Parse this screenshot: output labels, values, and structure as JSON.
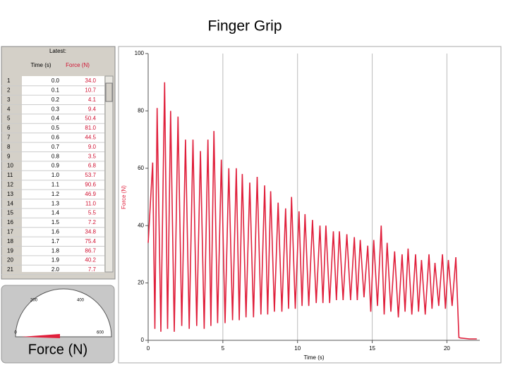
{
  "title": "Finger Grip",
  "table": {
    "group_header": "Latest:",
    "headers": [
      "Time (s)",
      "Force (N)"
    ],
    "rows": [
      [
        "1",
        "0.0",
        "34.0"
      ],
      [
        "2",
        "0.1",
        "10.7"
      ],
      [
        "3",
        "0.2",
        "4.1"
      ],
      [
        "4",
        "0.3",
        "9.4"
      ],
      [
        "5",
        "0.4",
        "50.4"
      ],
      [
        "6",
        "0.5",
        "81.0"
      ],
      [
        "7",
        "0.6",
        "44.5"
      ],
      [
        "8",
        "0.7",
        "9.0"
      ],
      [
        "9",
        "0.8",
        "3.5"
      ],
      [
        "10",
        "0.9",
        "6.8"
      ],
      [
        "11",
        "1.0",
        "53.7"
      ],
      [
        "12",
        "1.1",
        "90.6"
      ],
      [
        "13",
        "1.2",
        "46.9"
      ],
      [
        "14",
        "1.3",
        "11.0"
      ],
      [
        "15",
        "1.4",
        "5.5"
      ],
      [
        "16",
        "1.5",
        "7.2"
      ],
      [
        "17",
        "1.6",
        "34.8"
      ],
      [
        "18",
        "1.7",
        "75.4"
      ],
      [
        "19",
        "1.8",
        "86.7"
      ],
      [
        "20",
        "1.9",
        "40.2"
      ],
      [
        "21",
        "2.0",
        "7.7"
      ]
    ]
  },
  "meter": {
    "label": "Force (N)",
    "scale_labels": [
      "0",
      "200",
      "400",
      "600"
    ]
  },
  "chart_data": {
    "type": "line",
    "xlabel": "Time (s)",
    "ylabel": "Force (N)",
    "color": "#e0203c",
    "xlim": [
      0,
      22.2
    ],
    "ylim": [
      0,
      100
    ],
    "xticks": [
      0,
      5,
      10,
      15,
      20
    ],
    "yticks": [
      0,
      20,
      40,
      60,
      80,
      100
    ],
    "grid_x": true,
    "x": [
      0,
      0.3,
      0.45,
      0.6,
      0.85,
      1.1,
      1.3,
      1.5,
      1.75,
      2.0,
      2.25,
      2.5,
      2.75,
      3.0,
      3.25,
      3.5,
      3.75,
      4.0,
      4.2,
      4.4,
      4.65,
      4.9,
      5.15,
      5.4,
      5.65,
      5.9,
      6.1,
      6.3,
      6.55,
      6.8,
      7.05,
      7.3,
      7.55,
      7.8,
      8.0,
      8.2,
      8.45,
      8.7,
      8.95,
      9.2,
      9.4,
      9.6,
      9.85,
      10.1,
      10.3,
      10.5,
      10.75,
      11.0,
      11.25,
      11.5,
      11.7,
      11.9,
      12.15,
      12.4,
      12.6,
      12.8,
      13.05,
      13.3,
      13.55,
      13.8,
      14.0,
      14.2,
      14.45,
      14.7,
      14.9,
      15.1,
      15.35,
      15.6,
      15.8,
      16.0,
      16.25,
      16.5,
      16.75,
      17.0,
      17.2,
      17.4,
      17.65,
      17.9,
      18.1,
      18.3,
      18.55,
      18.8,
      19.0,
      19.2,
      19.45,
      19.7,
      19.9,
      20.1,
      20.35,
      20.6,
      20.8,
      20.9,
      21.5,
      22.0
    ],
    "values": [
      34,
      62,
      4,
      81,
      3,
      90,
      4,
      80,
      3,
      78,
      5,
      70,
      4,
      70,
      5,
      66,
      4,
      70,
      5,
      73,
      6,
      63,
      6,
      60,
      7,
      60,
      7,
      58,
      8,
      55,
      8,
      57,
      9,
      54,
      9,
      52,
      10,
      48,
      10,
      46,
      11,
      50,
      11,
      45,
      12,
      44,
      12,
      42,
      13,
      40,
      13,
      40,
      13,
      38,
      14,
      38,
      14,
      37,
      14,
      36,
      14,
      35,
      15,
      33,
      10,
      35,
      12,
      40,
      9,
      34,
      10,
      31,
      8,
      30,
      10,
      32,
      9,
      30,
      10,
      28,
      9,
      30,
      11,
      27,
      12,
      30,
      11,
      28,
      12,
      29,
      1,
      0.8,
      0.5,
      0.5
    ]
  }
}
